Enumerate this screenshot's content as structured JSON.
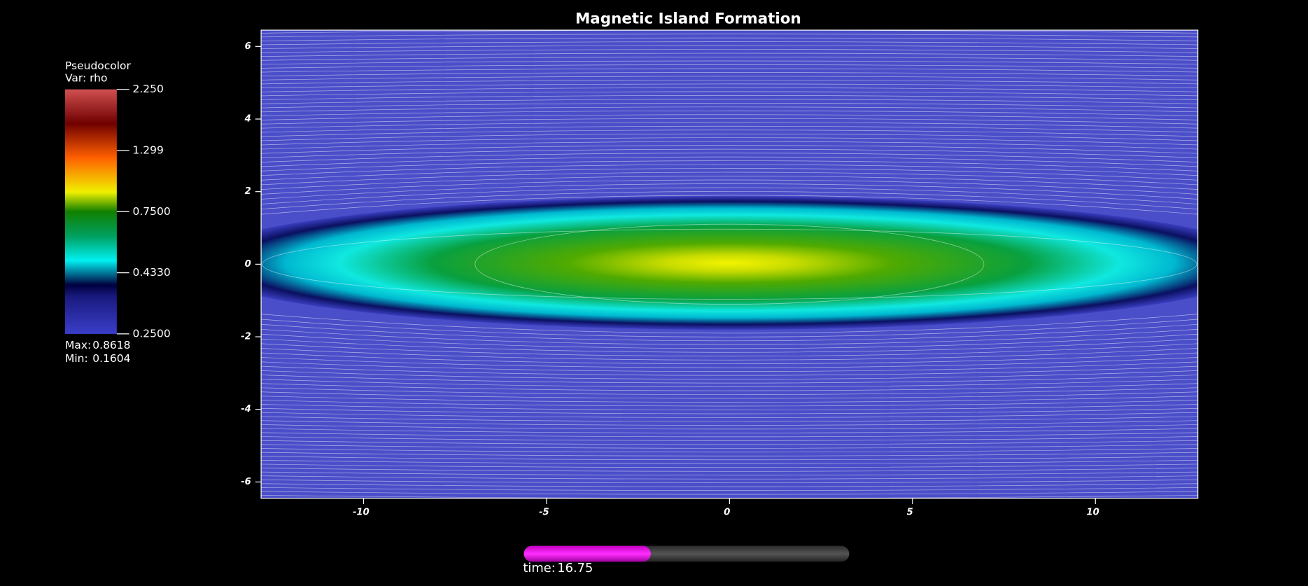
{
  "chart_data": {
    "type": "pseudocolor",
    "title": "Magnetic Island Formation",
    "xlim": [
      -12.8,
      12.8
    ],
    "ylim": [
      -6.45,
      6.45
    ],
    "xticks": [
      -10,
      -5,
      0,
      5,
      10
    ],
    "yticks": [
      -6,
      -4,
      -2,
      0,
      2,
      4,
      6
    ],
    "legend": {
      "plot_name": "Pseudocolor",
      "variable": "Var: rho",
      "log_scale": true,
      "range": [
        0.25,
        2.25
      ],
      "ticks": [
        {
          "value": 2.25,
          "label": "2.250"
        },
        1.299,
        {
          "value": 0.75,
          "label": "0.7500"
        },
        {
          "value": 0.433,
          "label": "0.4330"
        },
        {
          "value": 0.25,
          "label": "0.2500"
        }
      ],
      "max_label": "Max:",
      "max": 0.8618,
      "min_label": "Min:",
      "min": 0.1604
    },
    "time_label": "time:",
    "time": 16.75,
    "time_progress": 0.39
  }
}
